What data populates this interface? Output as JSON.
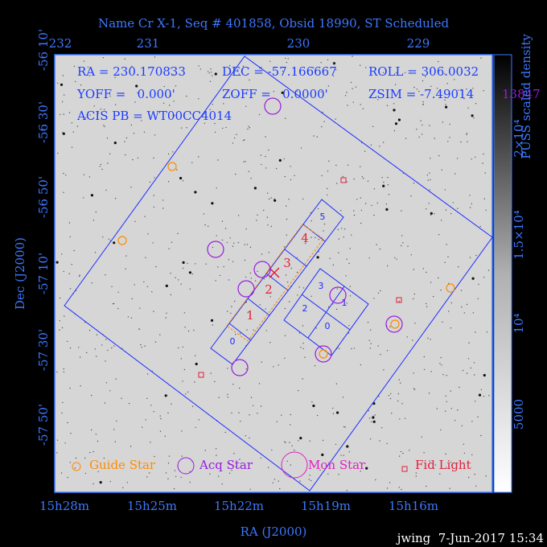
{
  "title": "Name Cr X-1, Seq # 401858, Obsid 18990, ST Scheduled",
  "axes": {
    "top_ticks": [
      "232",
      "231",
      "230",
      "229"
    ],
    "left_ticks": [
      "-56 10'",
      "-56 30'",
      "-56 50'",
      "-57 10'",
      "-57 30'",
      "-57 50'"
    ],
    "bottom_ticks": [
      "15h28m",
      "15h25m",
      "15h22m",
      "15h19m",
      "15h16m"
    ],
    "x_label": "RA (J2000)",
    "y_label": "Dec (J2000)"
  },
  "info": [
    "RA = 230.170833",
    "DEC = -57.166667",
    "ROLL = 306.0032",
    "YOFF =   0.000'",
    "ZOFF =   0.0000'",
    "ZSIM = -7.49014",
    "ACIS PB = WT00CC4014",
    "13847"
  ],
  "chips": {
    "acis": [
      "5",
      "3",
      "1",
      "2",
      "0",
      "0"
    ],
    "window": [
      "1",
      "2",
      "3",
      "4"
    ]
  },
  "legend": [
    "Guide Star",
    "Acq Star",
    "Mon Star",
    "Fid Light"
  ],
  "colorbar": {
    "title": "PUSS scaled density",
    "ticks": [
      "2×10⁴",
      "1.5×10⁴",
      "10⁴",
      "5000"
    ]
  },
  "footer": "jwing  7-Jun-2017 15:34"
}
